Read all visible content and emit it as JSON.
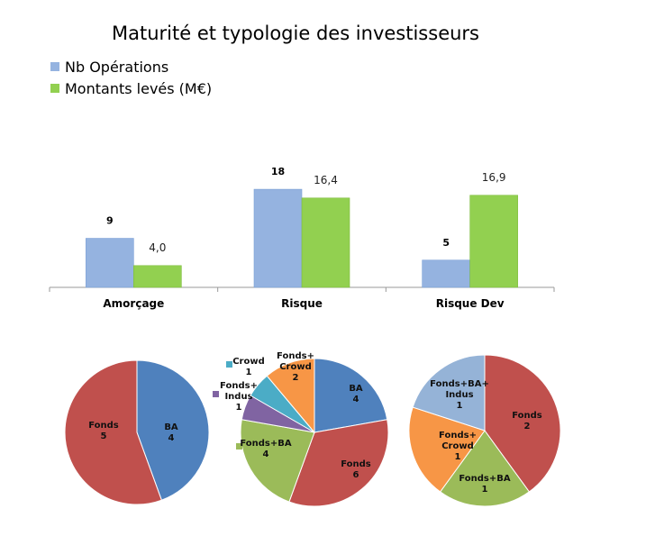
{
  "chart_data": [
    {
      "type": "bar",
      "title": "Maturité et typologie des investisseurs",
      "categories": [
        "Amorçage",
        "Risque",
        "Risque Dev"
      ],
      "series": [
        {
          "name": "Nb Opérations",
          "values": [
            9,
            18,
            5
          ],
          "labels": [
            "9",
            "18",
            "5"
          ],
          "color": "#95b3e0"
        },
        {
          "name": "Montants levés (M€)",
          "values": [
            4.0,
            16.4,
            16.9
          ],
          "labels": [
            "4,0",
            "16,4",
            "16,9"
          ],
          "color": "#92d050"
        }
      ],
      "ylim": [
        0,
        20
      ],
      "legend": "top-left",
      "grid": false
    },
    {
      "type": "pie",
      "category": "Amorçage",
      "slices": [
        {
          "name": "BA",
          "value": 4,
          "color": "#4f81bd"
        },
        {
          "name": "Fonds",
          "value": 5,
          "color": "#c0504d"
        }
      ]
    },
    {
      "type": "pie",
      "category": "Risque",
      "slices": [
        {
          "name": "BA",
          "value": 4,
          "color": "#4f81bd"
        },
        {
          "name": "Fonds",
          "value": 6,
          "color": "#c0504d"
        },
        {
          "name": "Fonds+BA",
          "value": 4,
          "color": "#9bbb59"
        },
        {
          "name": "Fonds+ Indus",
          "value": 1,
          "color": "#8064a2"
        },
        {
          "name": "Crowd",
          "value": 1,
          "color": "#4bacc6"
        },
        {
          "name": "Fonds+ Crowd",
          "value": 2,
          "color": "#f79646"
        }
      ]
    },
    {
      "type": "pie",
      "category": "Risque Dev",
      "slices": [
        {
          "name": "Fonds",
          "value": 2,
          "color": "#c0504d"
        },
        {
          "name": "Fonds+BA",
          "value": 1,
          "color": "#9bbb59"
        },
        {
          "name": "Fonds+ Crowd",
          "value": 1,
          "color": "#f79646"
        },
        {
          "name": "Fonds+BA+ Indus",
          "value": 1,
          "color": "#95b3d7"
        }
      ]
    }
  ]
}
